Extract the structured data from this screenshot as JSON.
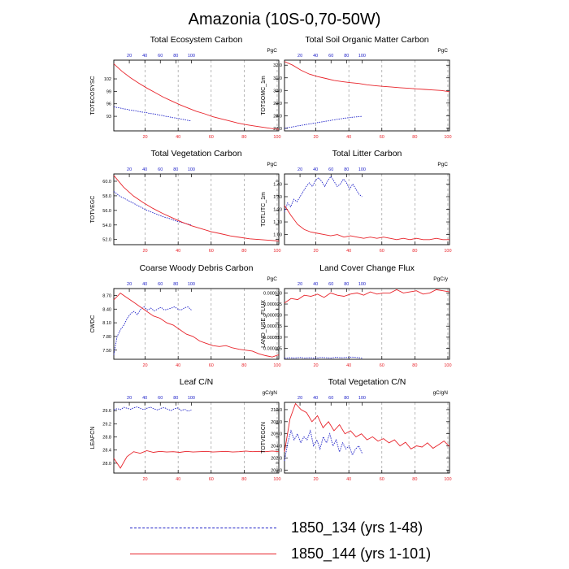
{
  "figure_title": "Amazonia (10S-0,70-50W)",
  "top_axis_ticks": [
    "20",
    "40",
    "60",
    "80",
    "100"
  ],
  "bottom_axis_ticks": [
    "20",
    "40",
    "60",
    "80",
    "100"
  ],
  "colors": {
    "case_a": "#1f22c8",
    "case_b": "#e8232a",
    "axis": "#000000",
    "grid": "#9a9a9a"
  },
  "legend": [
    {
      "label": "1850_134 (yrs 1-48)",
      "style": "dashed",
      "color": "#1f22c8"
    },
    {
      "label": "1850_144 (yrs 1-101)",
      "style": "solid",
      "color": "#e8232a"
    }
  ],
  "chart_data": [
    {
      "type": "line",
      "title": "Total Ecosystem Carbon",
      "ylabel": "TOTECOSYSC",
      "units": "PgC",
      "xlim": [
        1,
        101
      ],
      "ylim": [
        89.5,
        106.5
      ],
      "yticks": [
        "93",
        "96",
        "99",
        "102"
      ],
      "series": [
        {
          "name": "1850_134 (yrs 1-48)",
          "x_start": 1,
          "y": [
            95.3,
            95.1,
            95.0,
            94.8,
            94.7,
            94.5,
            94.4,
            94.3,
            94.1,
            94.0,
            93.9,
            93.7,
            93.6,
            93.5,
            93.3,
            93.2,
            93.0,
            92.9,
            92.7,
            92.6,
            92.5,
            92.3,
            92.2,
            92.0,
            91.9
          ]
        },
        {
          "name": "1850_144 (yrs 1-101)",
          "x_start": 1,
          "y": [
            105.6,
            103.8,
            102.3,
            101.0,
            99.8,
            98.7,
            97.6,
            96.7,
            95.8,
            95.0,
            94.2,
            93.6,
            92.9,
            92.4,
            91.9,
            91.4,
            91.0,
            90.7,
            90.4,
            90.1,
            89.9
          ]
        }
      ]
    },
    {
      "type": "line",
      "title": "Total Soil Organic Matter Carbon",
      "ylabel": "TOTSOMC_1m",
      "units": "PgC",
      "xlim": [
        1,
        101
      ],
      "ylim": [
        26.8,
        32.4
      ],
      "yticks": [
        "27.0",
        "28.0",
        "29.0",
        "30.0",
        "31.0",
        "32.0"
      ],
      "series": [
        {
          "name": "1850_134 (yrs 1-48)",
          "x_start": 1,
          "y": [
            27.0,
            27.07,
            27.13,
            27.2,
            27.26,
            27.32,
            27.38,
            27.44,
            27.5,
            27.56,
            27.62,
            27.68,
            27.74,
            27.79,
            27.84,
            27.88,
            27.92,
            27.95
          ]
        },
        {
          "name": "1850_144 (yrs 1-101)",
          "x_start": 1,
          "y": [
            32.3,
            32.0,
            31.6,
            31.3,
            31.1,
            30.95,
            30.8,
            30.7,
            30.62,
            30.55,
            30.45,
            30.38,
            30.32,
            30.27,
            30.22,
            30.17,
            30.13,
            30.08,
            30.04,
            30.0,
            29.9
          ]
        }
      ]
    },
    {
      "type": "line",
      "title": "Total Vegetation Carbon",
      "ylabel": "TOTVEGC",
      "units": "PgC",
      "xlim": [
        1,
        101
      ],
      "ylim": [
        51.3,
        61.0
      ],
      "yticks": [
        "52.0",
        "54.0",
        "56.0",
        "58.0",
        "60.0"
      ],
      "series": [
        {
          "name": "1850_134 (yrs 1-48)",
          "x_start": 1,
          "y": [
            58.6,
            58.0,
            57.6,
            57.2,
            56.8,
            56.4,
            56.0,
            55.7,
            55.4,
            55.1,
            54.9,
            54.6,
            54.4,
            54.2,
            54.0
          ]
        },
        {
          "name": "1850_144 (yrs 1-101)",
          "x_start": 1,
          "y": [
            60.8,
            59.2,
            58.0,
            57.1,
            56.3,
            55.6,
            55.0,
            54.4,
            53.9,
            53.5,
            53.1,
            52.8,
            52.5,
            52.3,
            52.1,
            52.0,
            51.9,
            51.8
          ]
        }
      ]
    },
    {
      "type": "line",
      "title": "Total Litter Carbon",
      "ylabel": "TOTLITC_1m",
      "units": "PgC",
      "xlim": [
        1,
        101
      ],
      "ylim": [
        0.92,
        1.48
      ],
      "yticks": [
        "1.00",
        "1.10",
        "1.20",
        "1.30",
        "1.40"
      ],
      "series": [
        {
          "name": "1850_134 (yrs 1-48)",
          "x_start": 1,
          "y": [
            1.18,
            1.25,
            1.22,
            1.28,
            1.26,
            1.3,
            1.34,
            1.38,
            1.41,
            1.38,
            1.43,
            1.45,
            1.42,
            1.38,
            1.43,
            1.46,
            1.42,
            1.38,
            1.4,
            1.44,
            1.41,
            1.36,
            1.4,
            1.36,
            1.32,
            1.3
          ]
        },
        {
          "name": "1850_144 (yrs 1-101)",
          "x_start": 1,
          "y": [
            1.23,
            1.15,
            1.08,
            1.04,
            1.02,
            1.01,
            1.0,
            0.99,
            1.0,
            0.98,
            0.99,
            0.98,
            0.97,
            0.98,
            0.97,
            0.98,
            0.97,
            0.96,
            0.97,
            0.96,
            0.97,
            0.96,
            0.96,
            0.97,
            0.96,
            0.96
          ]
        }
      ]
    },
    {
      "type": "line",
      "title": "Coarse Woody Debris Carbon",
      "ylabel": "CWDC",
      "units": "PgC",
      "xlim": [
        1,
        101
      ],
      "ylim": [
        7.3,
        8.85
      ],
      "yticks": [
        "7.50",
        "7.80",
        "8.10",
        "8.40",
        "8.70"
      ],
      "series": [
        {
          "name": "1850_134 (yrs 1-48)",
          "x_start": 1,
          "y": [
            7.4,
            7.8,
            7.95,
            8.05,
            8.2,
            8.3,
            8.35,
            8.28,
            8.4,
            8.45,
            8.38,
            8.42,
            8.36,
            8.4,
            8.44,
            8.38,
            8.4,
            8.42,
            8.45,
            8.4,
            8.38,
            8.43,
            8.45,
            8.38
          ]
        },
        {
          "name": "1850_144 (yrs 1-101)",
          "x_start": 1,
          "y": [
            8.6,
            8.75,
            8.65,
            8.55,
            8.45,
            8.35,
            8.25,
            8.2,
            8.1,
            8.05,
            7.95,
            7.85,
            7.8,
            7.7,
            7.65,
            7.6,
            7.58,
            7.6,
            7.55,
            7.52,
            7.5,
            7.48,
            7.42,
            7.38,
            7.35,
            7.4
          ]
        }
      ]
    },
    {
      "type": "line",
      "title": "Land Cover Change Flux",
      "ylabel": "LAND_USE_FLUX",
      "units": "PgC/y",
      "xlim": [
        1,
        101
      ],
      "ylim": [
        0.0,
        3.2e-05
      ],
      "yticks": [
        "0.000005",
        "0.000010",
        "0.000015",
        "0.000020",
        "0.000025",
        "0.000030"
      ],
      "series": [
        {
          "name": "1850_134 (yrs 1-48)",
          "x_start": 1,
          "y": [
            5e-07,
            7e-07,
            6e-07,
            8e-07,
            6e-07,
            7e-07,
            5e-07,
            8e-07,
            7e-07,
            6e-07,
            9e-07,
            7e-07,
            8e-07,
            1e-06,
            8e-07,
            6e-07
          ]
        },
        {
          "name": "1850_144 (yrs 1-101)",
          "x_start": 1,
          "y": [
            2.55e-05,
            2.75e-05,
            2.7e-05,
            2.9e-05,
            2.85e-05,
            2.95e-05,
            2.8e-05,
            3e-05,
            2.9e-05,
            2.85e-05,
            2.95e-05,
            3e-05,
            2.9e-05,
            3.05e-05,
            2.95e-05,
            3e-05,
            3e-05,
            3.15e-05,
            3e-05,
            3.05e-05,
            3.1e-05,
            2.95e-05,
            3e-05,
            3.15e-05,
            3.1e-05,
            3.05e-05
          ]
        }
      ]
    },
    {
      "type": "line",
      "title": "Leaf C/N",
      "ylabel": "LEAFCN",
      "units": "gC/gN",
      "xlim": [
        1,
        101
      ],
      "ylim": [
        27.7,
        29.85
      ],
      "yticks": [
        "28.0",
        "28.4",
        "28.8",
        "29.2",
        "29.6"
      ],
      "series": [
        {
          "name": "1850_134 (yrs 1-48)",
          "x_start": 1,
          "y": [
            29.62,
            29.66,
            29.63,
            29.7,
            29.67,
            29.64,
            29.69,
            29.71,
            29.66,
            29.63,
            29.68,
            29.7,
            29.65,
            29.62,
            29.67,
            29.69,
            29.64,
            29.6,
            29.66,
            29.68,
            29.6,
            29.64,
            29.58,
            29.62
          ]
        },
        {
          "name": "1850_144 (yrs 1-101)",
          "x_start": 1,
          "y": [
            28.15,
            27.85,
            28.2,
            28.35,
            28.3,
            28.38,
            28.33,
            28.36,
            28.34,
            28.35,
            28.33,
            28.36,
            28.34,
            28.35,
            28.36,
            28.34,
            28.35,
            28.36,
            28.34,
            28.35,
            28.37,
            28.35,
            28.36,
            28.35,
            28.37,
            28.35
          ]
        }
      ]
    },
    {
      "type": "line",
      "title": "Total Vegetation C/N",
      "ylabel": "TOTVEGCN",
      "units": "gC/gN",
      "xlim": [
        1,
        101
      ],
      "ylim": [
        199.5,
        211.2
      ],
      "yticks": [
        "200.0",
        "202.0",
        "204.0",
        "206.0",
        "208.0",
        "210.0"
      ],
      "series": [
        {
          "name": "1850_134 (yrs 1-48)",
          "x_start": 1,
          "y": [
            201.5,
            204.5,
            206.5,
            205.0,
            206.0,
            204.5,
            205.5,
            205.0,
            206.5,
            204.0,
            205.0,
            203.5,
            205.5,
            204.5,
            206.0,
            204.0,
            205.0,
            203.0,
            204.5,
            203.5,
            204.0,
            202.5,
            203.5,
            204.0,
            202.8
          ]
        },
        {
          "name": "1850_144 (yrs 1-101)",
          "x_start": 1,
          "y": [
            203.0,
            208.5,
            211.0,
            210.0,
            209.5,
            208.0,
            209.0,
            207.0,
            208.0,
            206.5,
            207.5,
            206.0,
            206.5,
            205.5,
            206.0,
            205.0,
            205.5,
            204.8,
            205.2,
            204.5,
            205.0,
            204.0,
            204.6,
            203.5,
            204.0,
            203.8,
            204.5,
            203.6,
            204.2,
            204.8,
            203.9
          ]
        }
      ]
    }
  ]
}
